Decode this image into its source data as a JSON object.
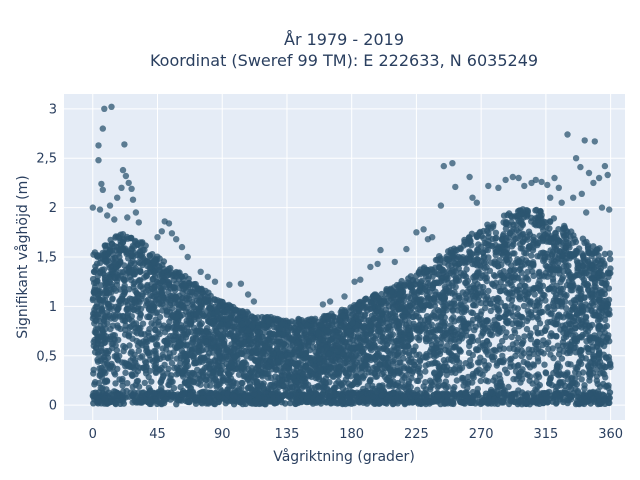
{
  "chart_data": {
    "type": "scatter",
    "title_line1": "År 1979 - 2019",
    "title_line2": "Koordinat (Sweref 99 TM): E 222633, N 6035249",
    "xlabel": "Vågriktning (grader)",
    "ylabel": "Signifikant våghöjd (m)",
    "xlim": [
      -20,
      370
    ],
    "ylim": [
      -0.15,
      3.15
    ],
    "x_ticks": [
      0,
      45,
      90,
      135,
      180,
      225,
      270,
      315,
      360
    ],
    "y_ticks": [
      0,
      0.5,
      1,
      1.5,
      2,
      2.5,
      3
    ],
    "y_tick_labels": [
      "0",
      "0,5",
      "1",
      "1,5",
      "2",
      "2,5",
      "3"
    ],
    "grid": true,
    "colors": {
      "background": "#e5ecf6",
      "marker": "#2c5570",
      "grid": "#ffffff"
    },
    "envelope": {
      "description": "dense point cloud upper bound per direction (m)",
      "x": [
        0,
        10,
        20,
        30,
        40,
        50,
        60,
        70,
        80,
        90,
        100,
        110,
        120,
        130,
        140,
        150,
        160,
        170,
        180,
        190,
        200,
        210,
        220,
        230,
        240,
        250,
        260,
        270,
        280,
        290,
        300,
        310,
        320,
        330,
        340,
        350,
        360
      ],
      "y": [
        1.55,
        1.65,
        1.75,
        1.72,
        1.6,
        1.45,
        1.35,
        1.25,
        1.15,
        1.05,
        0.98,
        0.93,
        0.9,
        0.88,
        0.87,
        0.88,
        0.9,
        0.95,
        1.0,
        1.08,
        1.15,
        1.22,
        1.3,
        1.4,
        1.5,
        1.6,
        1.7,
        1.8,
        1.88,
        1.95,
        2.0,
        1.98,
        1.9,
        1.8,
        1.7,
        1.6,
        1.55
      ]
    },
    "outliers": [
      {
        "x": 8,
        "y": 3.0
      },
      {
        "x": 13,
        "y": 3.02
      },
      {
        "x": 7,
        "y": 2.8
      },
      {
        "x": 4,
        "y": 2.63
      },
      {
        "x": 22,
        "y": 2.64
      },
      {
        "x": 4,
        "y": 2.48
      },
      {
        "x": 21,
        "y": 2.38
      },
      {
        "x": 23,
        "y": 2.32
      },
      {
        "x": 6,
        "y": 2.24
      },
      {
        "x": 7,
        "y": 2.18
      },
      {
        "x": 20,
        "y": 2.2
      },
      {
        "x": 25,
        "y": 2.25
      },
      {
        "x": 27,
        "y": 2.19
      },
      {
        "x": 0,
        "y": 2.0
      },
      {
        "x": 5,
        "y": 1.98
      },
      {
        "x": 12,
        "y": 2.02
      },
      {
        "x": 17,
        "y": 2.1
      },
      {
        "x": 28,
        "y": 2.08
      },
      {
        "x": 30,
        "y": 1.95
      },
      {
        "x": 10,
        "y": 1.92
      },
      {
        "x": 15,
        "y": 1.88
      },
      {
        "x": 24,
        "y": 1.9
      },
      {
        "x": 32,
        "y": 1.85
      },
      {
        "x": 50,
        "y": 1.86
      },
      {
        "x": 53,
        "y": 1.84
      },
      {
        "x": 48,
        "y": 1.76
      },
      {
        "x": 55,
        "y": 1.74
      },
      {
        "x": 58,
        "y": 1.68
      },
      {
        "x": 45,
        "y": 1.7
      },
      {
        "x": 62,
        "y": 1.6
      },
      {
        "x": 66,
        "y": 1.5
      },
      {
        "x": 75,
        "y": 1.35
      },
      {
        "x": 80,
        "y": 1.3
      },
      {
        "x": 85,
        "y": 1.25
      },
      {
        "x": 95,
        "y": 1.22
      },
      {
        "x": 103,
        "y": 1.23
      },
      {
        "x": 108,
        "y": 1.12
      },
      {
        "x": 112,
        "y": 1.05
      },
      {
        "x": 160,
        "y": 1.02
      },
      {
        "x": 165,
        "y": 1.05
      },
      {
        "x": 175,
        "y": 1.1
      },
      {
        "x": 182,
        "y": 1.25
      },
      {
        "x": 186,
        "y": 1.27
      },
      {
        "x": 193,
        "y": 1.4
      },
      {
        "x": 198,
        "y": 1.43
      },
      {
        "x": 200,
        "y": 1.57
      },
      {
        "x": 210,
        "y": 1.45
      },
      {
        "x": 218,
        "y": 1.58
      },
      {
        "x": 225,
        "y": 1.75
      },
      {
        "x": 230,
        "y": 1.78
      },
      {
        "x": 233,
        "y": 1.68
      },
      {
        "x": 236,
        "y": 1.7
      },
      {
        "x": 242,
        "y": 2.02
      },
      {
        "x": 244,
        "y": 2.42
      },
      {
        "x": 250,
        "y": 2.45
      },
      {
        "x": 252,
        "y": 2.21
      },
      {
        "x": 262,
        "y": 2.31
      },
      {
        "x": 264,
        "y": 2.1
      },
      {
        "x": 267,
        "y": 2.05
      },
      {
        "x": 275,
        "y": 2.22
      },
      {
        "x": 282,
        "y": 2.2
      },
      {
        "x": 287,
        "y": 2.28
      },
      {
        "x": 292,
        "y": 2.31
      },
      {
        "x": 296,
        "y": 2.3
      },
      {
        "x": 300,
        "y": 2.22
      },
      {
        "x": 305,
        "y": 2.25
      },
      {
        "x": 308,
        "y": 2.28
      },
      {
        "x": 312,
        "y": 2.26
      },
      {
        "x": 316,
        "y": 2.23
      },
      {
        "x": 321,
        "y": 2.3
      },
      {
        "x": 324,
        "y": 2.2
      },
      {
        "x": 330,
        "y": 2.74
      },
      {
        "x": 336,
        "y": 2.5
      },
      {
        "x": 339,
        "y": 2.41
      },
      {
        "x": 342,
        "y": 2.68
      },
      {
        "x": 345,
        "y": 2.35
      },
      {
        "x": 349,
        "y": 2.67
      },
      {
        "x": 352,
        "y": 2.3
      },
      {
        "x": 356,
        "y": 2.42
      },
      {
        "x": 358,
        "y": 2.33
      },
      {
        "x": 348,
        "y": 2.25
      },
      {
        "x": 340,
        "y": 2.14
      },
      {
        "x": 334,
        "y": 2.1
      },
      {
        "x": 359,
        "y": 1.98
      },
      {
        "x": 354,
        "y": 2.0
      },
      {
        "x": 343,
        "y": 1.95
      },
      {
        "x": 326,
        "y": 2.05
      },
      {
        "x": 318,
        "y": 2.1
      }
    ]
  }
}
